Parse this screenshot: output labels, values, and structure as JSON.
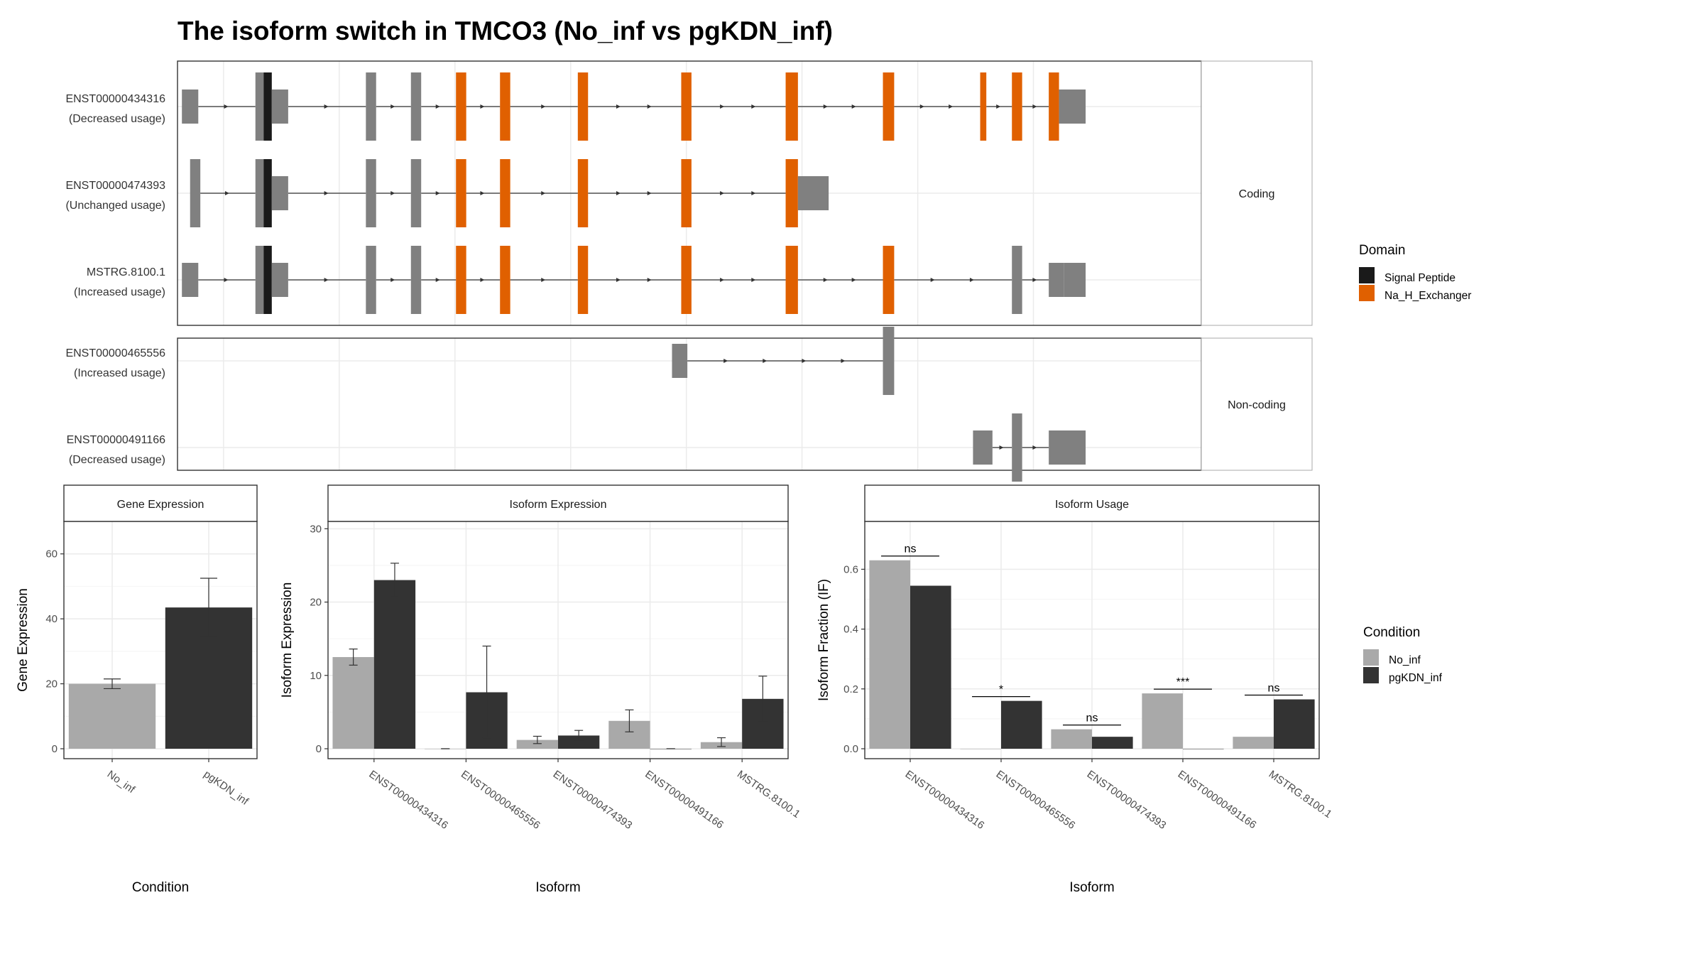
{
  "title": "The isoform switch in TMCO3 (No_inf vs pgKDN_inf)",
  "colors": {
    "exon": "#808080",
    "signal_peptide": "#1a1a1a",
    "na_h_exchanger": "#e06000",
    "no_inf": "#a9a9a9",
    "pgkdn_inf": "#333333"
  },
  "structure": {
    "groups": [
      {
        "strip": "Coding",
        "isoforms": [
          {
            "id": "ENST00000434316",
            "usage": "(Decreased usage)",
            "segments": [
              [
                0.43,
                2.03,
                "utr"
              ],
              [
                7.61,
                8.41,
                "utr"
              ],
              [
                8.41,
                9.21,
                "sp"
              ],
              [
                9.21,
                10.81,
                "utr"
              ],
              [
                18.4,
                19.4,
                "utr"
              ],
              [
                22.8,
                23.8,
                "utr"
              ],
              [
                27.2,
                28.2,
                "dom"
              ],
              [
                31.5,
                32.5,
                "dom"
              ],
              [
                39.1,
                40.1,
                "dom"
              ],
              [
                49.2,
                50.2,
                "dom"
              ],
              [
                59.4,
                60.6,
                "dom"
              ],
              [
                68.9,
                70.0,
                "dom"
              ],
              [
                78.4,
                79.0,
                "dom"
              ],
              [
                81.5,
                82.5,
                "dom"
              ],
              [
                85.1,
                86.1,
                "dom"
              ],
              [
                86.1,
                88.7,
                "utr"
              ]
            ]
          },
          {
            "id": "ENST00000474393",
            "usage": "(Unchanged usage)",
            "segments": [
              [
                1.23,
                2.23,
                "utr"
              ],
              [
                7.61,
                8.41,
                "utr"
              ],
              [
                8.41,
                9.21,
                "sp"
              ],
              [
                9.21,
                10.81,
                "utr"
              ],
              [
                18.4,
                19.4,
                "utr"
              ],
              [
                22.8,
                23.8,
                "utr"
              ],
              [
                27.2,
                28.2,
                "dom"
              ],
              [
                31.5,
                32.5,
                "dom"
              ],
              [
                39.1,
                40.1,
                "dom"
              ],
              [
                49.2,
                50.2,
                "dom"
              ],
              [
                59.4,
                60.6,
                "dom"
              ],
              [
                60.6,
                63.6,
                "utr"
              ]
            ]
          },
          {
            "id": "MSTRG.8100.1",
            "usage": "(Increased usage)",
            "segments": [
              [
                0.43,
                2.03,
                "utr"
              ],
              [
                7.61,
                8.41,
                "utr"
              ],
              [
                8.41,
                9.21,
                "sp"
              ],
              [
                9.21,
                10.81,
                "utr"
              ],
              [
                18.4,
                19.4,
                "utr"
              ],
              [
                22.8,
                23.8,
                "utr"
              ],
              [
                27.2,
                28.2,
                "dom"
              ],
              [
                31.5,
                32.5,
                "dom"
              ],
              [
                39.1,
                40.1,
                "dom"
              ],
              [
                49.2,
                50.2,
                "dom"
              ],
              [
                59.4,
                60.6,
                "dom"
              ],
              [
                68.9,
                70.0,
                "dom"
              ],
              [
                81.5,
                82.5,
                "utr"
              ],
              [
                85.1,
                86.6,
                "utr"
              ],
              [
                86.6,
                88.7,
                "utr"
              ]
            ]
          }
        ]
      },
      {
        "strip": "Non-coding",
        "isoforms": [
          {
            "id": "ENST00000465556",
            "usage": "(Increased usage)",
            "segments": [
              [
                48.3,
                49.8,
                "utr"
              ],
              [
                68.9,
                70.0,
                "utr"
              ]
            ]
          },
          {
            "id": "ENST00000491166",
            "usage": "(Decreased usage)",
            "segments": [
              [
                77.7,
                79.6,
                "utr"
              ],
              [
                81.5,
                82.5,
                "utr"
              ],
              [
                85.1,
                88.7,
                "utr"
              ]
            ]
          }
        ]
      }
    ]
  },
  "legend_domain": {
    "title": "Domain",
    "items": [
      {
        "label": "Signal Peptide",
        "color": "#1a1a1a"
      },
      {
        "label": "Na_H_Exchanger",
        "color": "#e06000"
      }
    ]
  },
  "legend_condition": {
    "title": "Condition",
    "items": [
      {
        "label": "No_inf",
        "color": "#a9a9a9"
      },
      {
        "label": "pgKDN_inf",
        "color": "#333333"
      }
    ]
  },
  "chart_data": [
    {
      "type": "bar",
      "title": "Gene Expression",
      "xlabel": "Condition",
      "ylabel": "Gene Expression",
      "ylim": [
        0,
        70
      ],
      "yticks": [
        0,
        20,
        40,
        60
      ],
      "categories": [
        "No_inf",
        "pgKDN_inf"
      ],
      "values": [
        20.0,
        43.5
      ],
      "errors": [
        [
          18.5,
          21.5
        ],
        [
          34.5,
          52.5
        ]
      ]
    },
    {
      "type": "bar",
      "title": "Isoform Expression",
      "xlabel": "Isoform",
      "ylabel": "Isoform Expression",
      "ylim": [
        0,
        31
      ],
      "yticks": [
        0,
        10,
        20,
        30
      ],
      "categories": [
        "ENST00000434316",
        "ENST00000465556",
        "ENST00000474393",
        "ENST00000491166",
        "MSTRG.8100.1"
      ],
      "series": [
        {
          "name": "No_inf",
          "values": [
            12.5,
            0.0,
            1.2,
            3.8,
            0.9
          ],
          "errors": [
            [
              11.4,
              13.6
            ],
            [
              0.0,
              0.0
            ],
            [
              0.7,
              1.7
            ],
            [
              2.3,
              5.3
            ],
            [
              0.3,
              1.5
            ]
          ]
        },
        {
          "name": "pgKDN_inf",
          "values": [
            23.0,
            7.7,
            1.8,
            0.0,
            6.8
          ],
          "errors": [
            [
              20.7,
              25.3
            ],
            [
              1.5,
              14.0
            ],
            [
              1.1,
              2.5
            ],
            [
              0.0,
              0.0
            ],
            [
              3.7,
              9.9
            ]
          ]
        }
      ]
    },
    {
      "type": "bar",
      "title": "Isoform Usage",
      "xlabel": "Isoform",
      "ylabel": "Isoform Fraction (IF)",
      "ylim": [
        0,
        0.76
      ],
      "yticks": [
        0.0,
        0.2,
        0.4,
        0.6
      ],
      "ytick_labels": [
        "0.0",
        "0.2",
        "0.4",
        "0.6"
      ],
      "categories": [
        "ENST00000434316",
        "ENST00000465556",
        "ENST00000474393",
        "ENST00000491166",
        "MSTRG.8100.1"
      ],
      "series": [
        {
          "name": "No_inf",
          "values": [
            0.63,
            0.0,
            0.065,
            0.185,
            0.04
          ]
        },
        {
          "name": "pgKDN_inf",
          "values": [
            0.545,
            0.16,
            0.04,
            0.0,
            0.165
          ]
        }
      ],
      "significance": [
        "ns",
        "*",
        "ns",
        "***",
        "ns"
      ]
    }
  ]
}
